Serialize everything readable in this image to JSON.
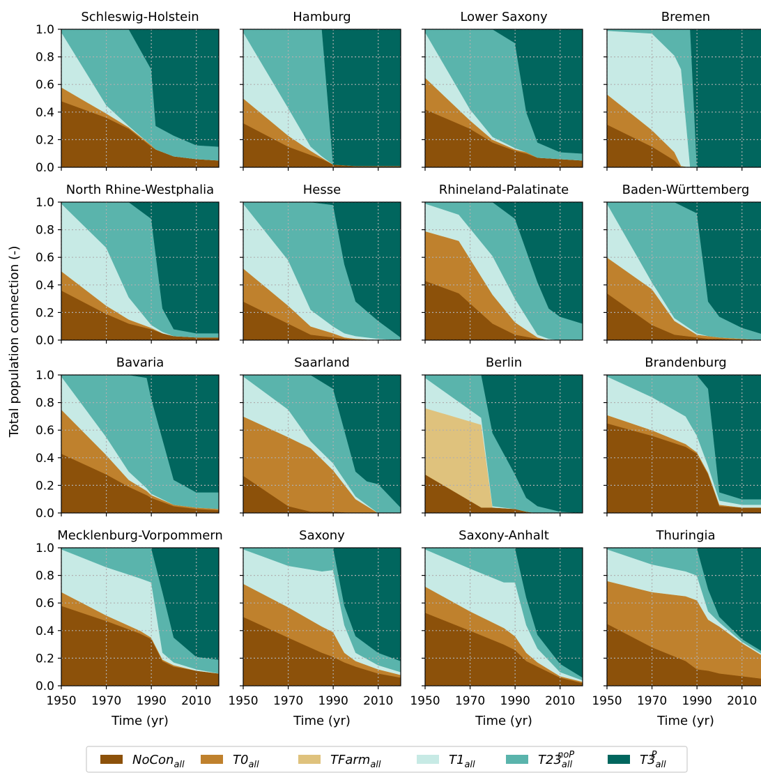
{
  "colors": {
    "NoCon": "#8c510a",
    "T0": "#bf812d",
    "TFarm": "#dfc27d",
    "T1": "#c7eae5",
    "T23": "#5ab4ac",
    "T3P": "#01665e",
    "grid": "#b0b0b0"
  },
  "chart_data": {
    "type": "area",
    "ylabel": "Total population connection (-)",
    "xlabel": "Time (yr)",
    "xlim": [
      1950,
      2020
    ],
    "ylim": [
      0,
      1
    ],
    "xticks": [
      1950,
      1970,
      1990,
      2010
    ],
    "yticks": [
      "0.0",
      "0.2",
      "0.4",
      "0.6",
      "0.8",
      "1.0"
    ],
    "grid": "dotted",
    "legend": {
      "placement": "bottom",
      "entries": [
        {
          "key": "NoCon",
          "base": "NoCon",
          "sub": "all",
          "sup": ""
        },
        {
          "key": "T0",
          "base": "T0",
          "sub": "all",
          "sup": ""
        },
        {
          "key": "TFarm",
          "base": "TFarm",
          "sub": "all",
          "sup": ""
        },
        {
          "key": "T1",
          "base": "T1",
          "sub": "all",
          "sup": ""
        },
        {
          "key": "T23",
          "base": "T23",
          "sub": "all",
          "sup": "noP"
        },
        {
          "key": "T3P",
          "base": "T3",
          "sub": "all",
          "sup": "P"
        }
      ]
    },
    "panels": [
      {
        "title": "Schleswig-Holstein",
        "x": [
          1950,
          1970,
          1980,
          1990,
          1992,
          2000,
          2010,
          2020
        ],
        "NoCon": [
          0.48,
          0.36,
          0.28,
          0.15,
          0.13,
          0.08,
          0.06,
          0.05
        ],
        "T0": [
          0.1,
          0.03,
          0.01,
          0.01,
          0.0,
          0.0,
          0.0,
          0.0
        ],
        "TFarm": [
          0,
          0,
          0,
          0,
          0,
          0,
          0,
          0
        ],
        "T1": [
          0.4,
          0.06,
          0.01,
          0.0,
          0.0,
          0.0,
          0.0,
          0.0
        ],
        "T23": [
          0.02,
          0.55,
          0.7,
          0.55,
          0.17,
          0.15,
          0.1,
          0.1
        ],
        "T3P": [
          0.0,
          0.0,
          0.0,
          0.29,
          0.7,
          0.77,
          0.84,
          0.85
        ]
      },
      {
        "title": "Hamburg",
        "x": [
          1950,
          1970,
          1980,
          1985,
          1990,
          2000,
          2010,
          2020
        ],
        "NoCon": [
          0.32,
          0.15,
          0.09,
          0.06,
          0.02,
          0.01,
          0.01,
          0.01
        ],
        "T0": [
          0.18,
          0.08,
          0.03,
          0.01,
          0.0,
          0.0,
          0.0,
          0.0
        ],
        "TFarm": [
          0,
          0,
          0,
          0,
          0,
          0,
          0,
          0
        ],
        "T1": [
          0.48,
          0.2,
          0.03,
          0.01,
          0.0,
          0.0,
          0.0,
          0.0
        ],
        "T23": [
          0.02,
          0.57,
          0.85,
          0.92,
          0.0,
          0.0,
          0.0,
          0.0
        ],
        "T3P": [
          0.0,
          0.0,
          0.0,
          0.0,
          0.98,
          0.99,
          0.99,
          0.99
        ]
      },
      {
        "title": "Lower Saxony",
        "x": [
          1950,
          1970,
          1980,
          1990,
          1995,
          2000,
          2010,
          2020
        ],
        "NoCon": [
          0.42,
          0.28,
          0.18,
          0.12,
          0.1,
          0.07,
          0.06,
          0.05
        ],
        "T0": [
          0.23,
          0.06,
          0.02,
          0.01,
          0.01,
          0.0,
          0.0,
          0.0
        ],
        "TFarm": [
          0,
          0,
          0,
          0,
          0,
          0,
          0,
          0
        ],
        "T1": [
          0.33,
          0.08,
          0.02,
          0.01,
          0.0,
          0.0,
          0.0,
          0.0
        ],
        "T23": [
          0.02,
          0.58,
          0.78,
          0.76,
          0.29,
          0.11,
          0.05,
          0.05
        ],
        "T3P": [
          0.0,
          0.0,
          0.0,
          0.1,
          0.6,
          0.82,
          0.89,
          0.9
        ]
      },
      {
        "title": "Bremen",
        "x": [
          1950,
          1970,
          1980,
          1983,
          1987,
          1990,
          2000,
          2020
        ],
        "NoCon": [
          0.31,
          0.15,
          0.05,
          0.0,
          0.0,
          0.0,
          0.0,
          0.0
        ],
        "T0": [
          0.22,
          0.12,
          0.06,
          0.01,
          0.0,
          0.0,
          0.0,
          0.0
        ],
        "TFarm": [
          0,
          0,
          0,
          0,
          0,
          0,
          0,
          0
        ],
        "T1": [
          0.46,
          0.7,
          0.7,
          0.7,
          0.0,
          0.0,
          0.0,
          0.0
        ],
        "T23": [
          0.01,
          0.03,
          0.19,
          0.29,
          1.0,
          0.0,
          0.0,
          0.0
        ],
        "T3P": [
          0.0,
          0.0,
          0.0,
          0.0,
          0.0,
          1.0,
          1.0,
          1.0
        ]
      },
      {
        "title": "North Rhine-Westphalia",
        "x": [
          1950,
          1970,
          1980,
          1990,
          1995,
          2000,
          2010,
          2020
        ],
        "NoCon": [
          0.36,
          0.19,
          0.12,
          0.08,
          0.05,
          0.03,
          0.02,
          0.02
        ],
        "T0": [
          0.14,
          0.06,
          0.03,
          0.01,
          0.0,
          0.0,
          0.0,
          0.0
        ],
        "TFarm": [
          0,
          0,
          0,
          0,
          0,
          0,
          0,
          0
        ],
        "T1": [
          0.49,
          0.42,
          0.16,
          0.02,
          0.01,
          0.0,
          0.0,
          0.0
        ],
        "T23": [
          0.01,
          0.33,
          0.69,
          0.77,
          0.17,
          0.05,
          0.03,
          0.03
        ],
        "T3P": [
          0.0,
          0.0,
          0.0,
          0.12,
          0.77,
          0.92,
          0.95,
          0.95
        ]
      },
      {
        "title": "Hesse",
        "x": [
          1950,
          1970,
          1980,
          1990,
          1995,
          2000,
          2010,
          2020
        ],
        "NoCon": [
          0.28,
          0.12,
          0.04,
          0.02,
          0.01,
          0.0,
          0.0,
          0.0
        ],
        "T0": [
          0.24,
          0.13,
          0.06,
          0.03,
          0.01,
          0.01,
          0.0,
          0.0
        ],
        "TFarm": [
          0,
          0,
          0,
          0,
          0,
          0,
          0,
          0
        ],
        "T1": [
          0.47,
          0.33,
          0.12,
          0.05,
          0.03,
          0.02,
          0.01,
          0.0
        ],
        "T23": [
          0.01,
          0.42,
          0.78,
          0.88,
          0.5,
          0.25,
          0.13,
          0.02
        ],
        "T3P": [
          0.0,
          0.0,
          0.0,
          0.02,
          0.45,
          0.72,
          0.86,
          0.98
        ]
      },
      {
        "title": "Rhineland-Palatinate",
        "x": [
          1950,
          1965,
          1980,
          1990,
          2000,
          2005,
          2010,
          2020
        ],
        "NoCon": [
          0.43,
          0.34,
          0.12,
          0.04,
          0.01,
          0.0,
          0.0,
          0.0
        ],
        "T0": [
          0.36,
          0.38,
          0.21,
          0.09,
          0.01,
          0.0,
          0.0,
          0.0
        ],
        "TFarm": [
          0,
          0,
          0,
          0,
          0,
          0,
          0,
          0
        ],
        "T1": [
          0.2,
          0.19,
          0.28,
          0.17,
          0.02,
          0.01,
          0.0,
          0.0
        ],
        "T23": [
          0.01,
          0.09,
          0.39,
          0.58,
          0.38,
          0.22,
          0.17,
          0.12
        ],
        "T3P": [
          0.0,
          0.0,
          0.0,
          0.12,
          0.58,
          0.77,
          0.83,
          0.88
        ]
      },
      {
        "title": "Baden-Württemberg",
        "x": [
          1950,
          1970,
          1980,
          1990,
          1995,
          2000,
          2010,
          2020
        ],
        "NoCon": [
          0.34,
          0.11,
          0.04,
          0.02,
          0.01,
          0.01,
          0.0,
          0.0
        ],
        "T0": [
          0.26,
          0.26,
          0.1,
          0.02,
          0.02,
          0.01,
          0.01,
          0.0
        ],
        "TFarm": [
          0,
          0,
          0,
          0,
          0,
          0,
          0,
          0
        ],
        "T1": [
          0.39,
          0.05,
          0.02,
          0.01,
          0.0,
          0.0,
          0.0,
          0.0
        ],
        "T23": [
          0.01,
          0.58,
          0.84,
          0.87,
          0.25,
          0.15,
          0.08,
          0.04
        ],
        "T3P": [
          0.0,
          0.0,
          0.0,
          0.08,
          0.72,
          0.83,
          0.91,
          0.96
        ]
      },
      {
        "title": "Bavaria",
        "x": [
          1950,
          1970,
          1980,
          1988,
          1990,
          2000,
          2010,
          2020
        ],
        "NoCon": [
          0.43,
          0.28,
          0.19,
          0.13,
          0.11,
          0.05,
          0.03,
          0.02
        ],
        "T0": [
          0.32,
          0.14,
          0.05,
          0.03,
          0.02,
          0.01,
          0.01,
          0.01
        ],
        "TFarm": [
          0,
          0,
          0,
          0,
          0,
          0,
          0,
          0
        ],
        "T1": [
          0.24,
          0.13,
          0.06,
          0.02,
          0.01,
          0.0,
          0.0,
          0.0
        ],
        "T23": [
          0.01,
          0.45,
          0.7,
          0.8,
          0.69,
          0.18,
          0.11,
          0.12
        ],
        "T3P": [
          0.0,
          0.0,
          0.0,
          0.02,
          0.17,
          0.76,
          0.85,
          0.85
        ]
      },
      {
        "title": "Saarland",
        "x": [
          1950,
          1970,
          1980,
          1990,
          2000,
          2005,
          2010,
          2020
        ],
        "NoCon": [
          0.27,
          0.05,
          0.01,
          0.01,
          0.0,
          0.0,
          0.0,
          0.0
        ],
        "T0": [
          0.43,
          0.5,
          0.46,
          0.3,
          0.1,
          0.05,
          0.0,
          0.0
        ],
        "TFarm": [
          0,
          0,
          0,
          0,
          0,
          0,
          0,
          0
        ],
        "T1": [
          0.29,
          0.2,
          0.05,
          0.05,
          0.02,
          0.01,
          0.0,
          0.0
        ],
        "T23": [
          0.01,
          0.25,
          0.48,
          0.54,
          0.18,
          0.17,
          0.21,
          0.04
        ],
        "T3P": [
          0.0,
          0.0,
          0.0,
          0.1,
          0.7,
          0.77,
          0.79,
          0.96
        ]
      },
      {
        "title": "Berlin",
        "x": [
          1950,
          1975,
          1980,
          1990,
          1995,
          2000,
          2010,
          2020
        ],
        "NoCon": [
          0.28,
          0.04,
          0.04,
          0.03,
          0.01,
          0.0,
          0.0,
          0.0
        ],
        "TFarm": [
          0.48,
          0.6,
          0.0,
          0.0,
          0.0,
          0.0,
          0.0,
          0.0
        ],
        "T0": [
          0,
          0,
          0,
          0,
          0,
          0,
          0,
          0
        ],
        "T1": [
          0.22,
          0.05,
          0.01,
          0.0,
          0.0,
          0.0,
          0.0,
          0.0
        ],
        "T23": [
          0.02,
          0.31,
          0.53,
          0.25,
          0.1,
          0.05,
          0.01,
          0.0
        ],
        "T3P": [
          0.0,
          0.0,
          0.42,
          0.72,
          0.89,
          0.95,
          0.99,
          1.0
        ]
      },
      {
        "title": "Brandenburg",
        "x": [
          1950,
          1970,
          1985,
          1990,
          1995,
          2000,
          2010,
          2020
        ],
        "NoCon": [
          0.65,
          0.56,
          0.48,
          0.43,
          0.28,
          0.05,
          0.04,
          0.04
        ],
        "T0": [
          0.06,
          0.04,
          0.02,
          0.01,
          0.01,
          0.01,
          0.0,
          0.0
        ],
        "TFarm": [
          0,
          0,
          0,
          0,
          0,
          0,
          0,
          0
        ],
        "T1": [
          0.28,
          0.24,
          0.2,
          0.12,
          0.05,
          0.03,
          0.02,
          0.02
        ],
        "T23": [
          0.01,
          0.16,
          0.3,
          0.44,
          0.56,
          0.06,
          0.04,
          0.04
        ],
        "T3P": [
          0.0,
          0.0,
          0.0,
          0.0,
          0.1,
          0.85,
          0.9,
          0.9
        ]
      },
      {
        "title": "Mecklenburg-Vorpommern",
        "x": [
          1950,
          1970,
          1985,
          1990,
          1995,
          2000,
          2010,
          2020
        ],
        "NoCon": [
          0.58,
          0.47,
          0.38,
          0.34,
          0.18,
          0.14,
          0.11,
          0.09
        ],
        "T0": [
          0.1,
          0.04,
          0.02,
          0.01,
          0.01,
          0.01,
          0.0,
          0.0
        ],
        "TFarm": [
          0,
          0,
          0,
          0,
          0,
          0,
          0,
          0
        ],
        "T1": [
          0.31,
          0.35,
          0.38,
          0.4,
          0.05,
          0.02,
          0.01,
          0.0
        ],
        "T23": [
          0.01,
          0.14,
          0.22,
          0.25,
          0.44,
          0.18,
          0.09,
          0.1
        ],
        "T3P": [
          0.0,
          0.0,
          0.0,
          0.0,
          0.32,
          0.65,
          0.79,
          0.81
        ]
      },
      {
        "title": "Saxony",
        "x": [
          1950,
          1970,
          1985,
          1990,
          1995,
          2000,
          2010,
          2020
        ],
        "NoCon": [
          0.5,
          0.35,
          0.24,
          0.21,
          0.17,
          0.14,
          0.09,
          0.06
        ],
        "T0": [
          0.24,
          0.22,
          0.19,
          0.18,
          0.07,
          0.04,
          0.03,
          0.02
        ],
        "TFarm": [
          0,
          0,
          0,
          0,
          0,
          0,
          0,
          0
        ],
        "T1": [
          0.25,
          0.3,
          0.4,
          0.45,
          0.2,
          0.06,
          0.03,
          0.02
        ],
        "T23": [
          0.01,
          0.13,
          0.17,
          0.16,
          0.14,
          0.12,
          0.09,
          0.08
        ],
        "T3P": [
          0.0,
          0.0,
          0.0,
          0.0,
          0.42,
          0.64,
          0.76,
          0.82
        ]
      },
      {
        "title": "Saxony-Anhalt",
        "x": [
          1950,
          1970,
          1985,
          1990,
          1995,
          2000,
          2010,
          2020
        ],
        "NoCon": [
          0.53,
          0.4,
          0.3,
          0.26,
          0.18,
          0.14,
          0.06,
          0.02
        ],
        "T0": [
          0.19,
          0.14,
          0.12,
          0.1,
          0.06,
          0.03,
          0.01,
          0.01
        ],
        "TFarm": [
          0,
          0,
          0,
          0,
          0,
          0,
          0,
          0
        ],
        "T1": [
          0.27,
          0.31,
          0.33,
          0.39,
          0.2,
          0.1,
          0.03,
          0.01
        ],
        "T23": [
          0.01,
          0.15,
          0.25,
          0.25,
          0.2,
          0.1,
          0.06,
          0.02
        ],
        "T3P": [
          0.0,
          0.0,
          0.0,
          0.0,
          0.36,
          0.63,
          0.84,
          0.94
        ]
      },
      {
        "title": "Thuringia",
        "x": [
          1950,
          1970,
          1985,
          1990,
          1995,
          2000,
          2010,
          2020
        ],
        "NoCon": [
          0.45,
          0.28,
          0.18,
          0.12,
          0.11,
          0.09,
          0.07,
          0.05
        ],
        "T0": [
          0.31,
          0.4,
          0.47,
          0.5,
          0.37,
          0.34,
          0.24,
          0.16
        ],
        "TFarm": [
          0,
          0,
          0,
          0,
          0,
          0,
          0,
          0
        ],
        "T1": [
          0.23,
          0.2,
          0.18,
          0.18,
          0.06,
          0.03,
          0.01,
          0.01
        ],
        "T23": [
          0.01,
          0.12,
          0.17,
          0.2,
          0.16,
          0.04,
          0.02,
          0.02
        ],
        "T3P": [
          0.0,
          0.0,
          0.0,
          0.0,
          0.3,
          0.5,
          0.66,
          0.76
        ]
      }
    ]
  }
}
